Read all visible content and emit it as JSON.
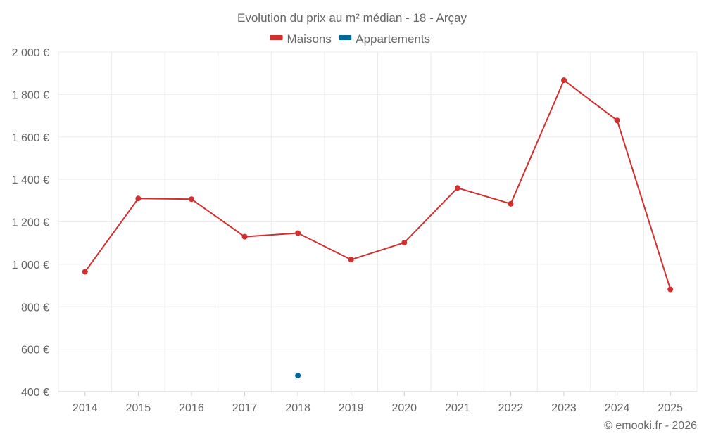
{
  "chart_data": {
    "type": "line",
    "title": "Evolution du prix au m² médian - 18 - Arçay",
    "categories": [
      "2014",
      "2015",
      "2016",
      "2017",
      "2018",
      "2019",
      "2020",
      "2021",
      "2022",
      "2023",
      "2024",
      "2025"
    ],
    "series": [
      {
        "name": "Maisons",
        "color": "#d32f2f",
        "values": [
          965,
          1310,
          1307,
          1130,
          1147,
          1022,
          1102,
          1360,
          1285,
          1867,
          1678,
          882
        ]
      },
      {
        "name": "Appartements",
        "color": "#01689b",
        "values": [
          null,
          null,
          null,
          null,
          476,
          null,
          null,
          null,
          null,
          null,
          null,
          null
        ]
      }
    ],
    "ylim": [
      400,
      2000
    ],
    "yticks": [
      400,
      600,
      800,
      1000,
      1200,
      1400,
      1600,
      1800,
      2000
    ],
    "ytick_labels": [
      "400 €",
      "600 €",
      "800 €",
      "1 000 €",
      "1 200 €",
      "1 400 €",
      "1 600 €",
      "1 800 €",
      "2 000 €"
    ],
    "grid": true,
    "legend_position": "top-center",
    "xlabel": "",
    "ylabel": ""
  },
  "credit": "© emooki.fr - 2026",
  "colors": {
    "text": "#666666",
    "grid": "#ececec",
    "axis": "#cccccc"
  }
}
